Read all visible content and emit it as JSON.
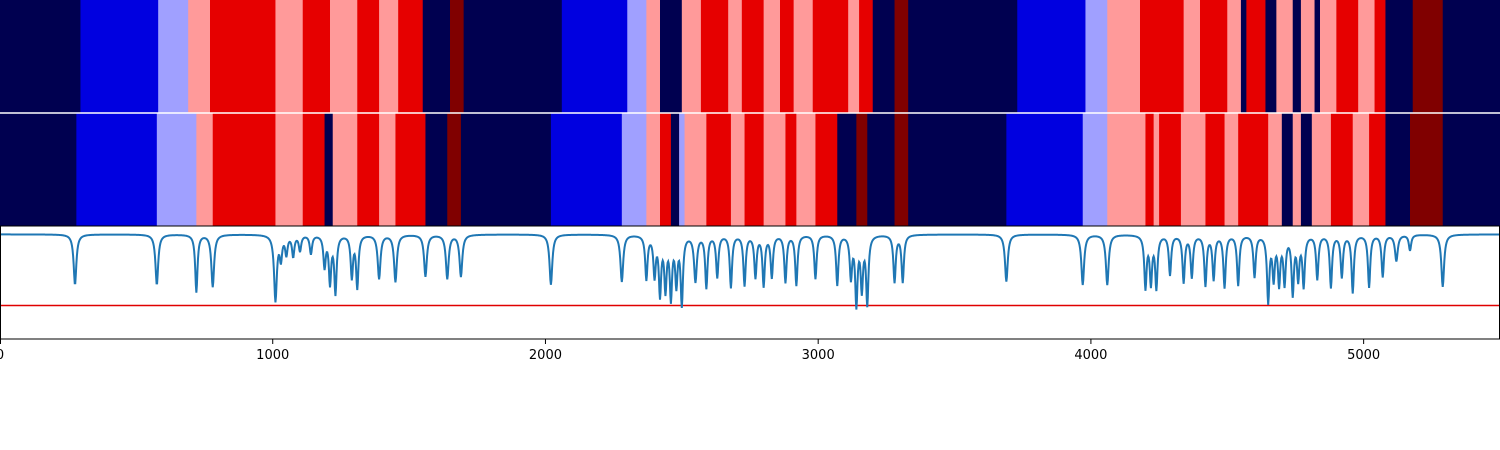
{
  "chart_data": [
    {
      "type": "heatmap",
      "name": "top-segmentation-band",
      "xlim": [
        0,
        5500
      ],
      "palette": {
        "0": "#000050",
        "1": "#0000e0",
        "2": "#a0a0ff",
        "3": "#ff9a9a",
        "4": "#e60000",
        "5": "#800000"
      },
      "segments": [
        [
          0,
          295,
          0
        ],
        [
          295,
          580,
          1
        ],
        [
          580,
          690,
          2
        ],
        [
          690,
          770,
          3
        ],
        [
          770,
          1010,
          4
        ],
        [
          1010,
          1110,
          3
        ],
        [
          1110,
          1210,
          4
        ],
        [
          1210,
          1310,
          3
        ],
        [
          1310,
          1390,
          4
        ],
        [
          1390,
          1460,
          3
        ],
        [
          1460,
          1550,
          4
        ],
        [
          1550,
          1650,
          0
        ],
        [
          1650,
          1700,
          5
        ],
        [
          1700,
          2060,
          0
        ],
        [
          2060,
          2300,
          1
        ],
        [
          2300,
          2370,
          2
        ],
        [
          2370,
          2420,
          3
        ],
        [
          2420,
          2500,
          0
        ],
        [
          2500,
          2570,
          3
        ],
        [
          2570,
          2670,
          4
        ],
        [
          2670,
          2720,
          3
        ],
        [
          2720,
          2800,
          4
        ],
        [
          2800,
          2860,
          3
        ],
        [
          2860,
          2910,
          4
        ],
        [
          2910,
          2980,
          3
        ],
        [
          2980,
          3110,
          4
        ],
        [
          3110,
          3150,
          3
        ],
        [
          3150,
          3200,
          4
        ],
        [
          3200,
          3280,
          0
        ],
        [
          3280,
          3330,
          5
        ],
        [
          3330,
          3730,
          0
        ],
        [
          3730,
          3980,
          1
        ],
        [
          3980,
          4060,
          2
        ],
        [
          4060,
          4180,
          3
        ],
        [
          4180,
          4340,
          4
        ],
        [
          4340,
          4400,
          3
        ],
        [
          4400,
          4500,
          4
        ],
        [
          4500,
          4550,
          3
        ],
        [
          4550,
          4570,
          0
        ],
        [
          4570,
          4640,
          4
        ],
        [
          4640,
          4680,
          0
        ],
        [
          4680,
          4740,
          3
        ],
        [
          4740,
          4770,
          0
        ],
        [
          4770,
          4820,
          3
        ],
        [
          4820,
          4840,
          0
        ],
        [
          4840,
          4900,
          3
        ],
        [
          4900,
          4980,
          4
        ],
        [
          4980,
          5040,
          3
        ],
        [
          5040,
          5080,
          4
        ],
        [
          5080,
          5180,
          0
        ],
        [
          5180,
          5290,
          5
        ],
        [
          5290,
          5500,
          0
        ]
      ]
    },
    {
      "type": "heatmap",
      "name": "bottom-segmentation-band",
      "xlim": [
        0,
        5500
      ],
      "palette": {
        "0": "#000050",
        "1": "#0000e0",
        "2": "#a0a0ff",
        "3": "#ff9a9a",
        "4": "#e60000",
        "5": "#800000"
      },
      "segments": [
        [
          0,
          280,
          0
        ],
        [
          280,
          575,
          1
        ],
        [
          575,
          720,
          2
        ],
        [
          720,
          780,
          3
        ],
        [
          780,
          1010,
          4
        ],
        [
          1010,
          1110,
          3
        ],
        [
          1110,
          1190,
          4
        ],
        [
          1190,
          1220,
          0
        ],
        [
          1220,
          1310,
          3
        ],
        [
          1310,
          1390,
          4
        ],
        [
          1390,
          1450,
          3
        ],
        [
          1450,
          1560,
          4
        ],
        [
          1560,
          1640,
          0
        ],
        [
          1640,
          1690,
          5
        ],
        [
          1690,
          2020,
          0
        ],
        [
          2020,
          2280,
          1
        ],
        [
          2280,
          2370,
          2
        ],
        [
          2370,
          2420,
          3
        ],
        [
          2420,
          2460,
          4
        ],
        [
          2460,
          2490,
          0
        ],
        [
          2490,
          2510,
          2
        ],
        [
          2510,
          2590,
          3
        ],
        [
          2590,
          2680,
          4
        ],
        [
          2680,
          2730,
          3
        ],
        [
          2730,
          2800,
          4
        ],
        [
          2800,
          2880,
          3
        ],
        [
          2880,
          2920,
          4
        ],
        [
          2920,
          2990,
          3
        ],
        [
          2990,
          3070,
          4
        ],
        [
          3070,
          3140,
          0
        ],
        [
          3140,
          3180,
          5
        ],
        [
          3180,
          3280,
          0
        ],
        [
          3280,
          3330,
          5
        ],
        [
          3330,
          3690,
          0
        ],
        [
          3690,
          3970,
          1
        ],
        [
          3970,
          4060,
          2
        ],
        [
          4060,
          4200,
          3
        ],
        [
          4200,
          4230,
          4
        ],
        [
          4230,
          4250,
          3
        ],
        [
          4250,
          4330,
          4
        ],
        [
          4330,
          4420,
          3
        ],
        [
          4420,
          4490,
          4
        ],
        [
          4490,
          4540,
          3
        ],
        [
          4540,
          4650,
          4
        ],
        [
          4650,
          4700,
          3
        ],
        [
          4700,
          4740,
          0
        ],
        [
          4740,
          4770,
          3
        ],
        [
          4770,
          4810,
          0
        ],
        [
          4810,
          4880,
          3
        ],
        [
          4880,
          4960,
          4
        ],
        [
          4960,
          5020,
          3
        ],
        [
          5020,
          5080,
          4
        ],
        [
          5080,
          5170,
          0
        ],
        [
          5170,
          5290,
          5
        ],
        [
          5290,
          5500,
          0
        ]
      ]
    },
    {
      "type": "line",
      "name": "signal-trace",
      "xlim": [
        0,
        5500
      ],
      "ylim": [
        -1.0,
        0.08
      ],
      "color": "#1f77b4",
      "threshold": {
        "y": -0.68,
        "color": "#e00000"
      },
      "baseline": 0.0,
      "dips": [
        [
          275,
          -0.48,
          6
        ],
        [
          575,
          -0.48,
          6
        ],
        [
          720,
          -0.55,
          5
        ],
        [
          780,
          -0.5,
          6
        ],
        [
          1010,
          -0.63,
          6
        ],
        [
          1030,
          -0.22,
          5
        ],
        [
          1050,
          -0.18,
          5
        ],
        [
          1075,
          -0.2,
          5
        ],
        [
          1100,
          -0.15,
          5
        ],
        [
          1140,
          -0.18,
          5
        ],
        [
          1190,
          -0.3,
          5
        ],
        [
          1210,
          -0.45,
          5
        ],
        [
          1230,
          -0.55,
          5
        ],
        [
          1290,
          -0.4,
          5
        ],
        [
          1310,
          -0.5,
          5
        ],
        [
          1390,
          -0.42,
          6
        ],
        [
          1450,
          -0.45,
          6
        ],
        [
          1560,
          -0.4,
          6
        ],
        [
          1640,
          -0.42,
          6
        ],
        [
          1690,
          -0.4,
          6
        ],
        [
          2020,
          -0.48,
          6
        ],
        [
          2280,
          -0.45,
          6
        ],
        [
          2370,
          -0.42,
          5
        ],
        [
          2400,
          -0.38,
          5
        ],
        [
          2420,
          -0.55,
          5
        ],
        [
          2440,
          -0.5,
          5
        ],
        [
          2460,
          -0.58,
          5
        ],
        [
          2480,
          -0.45,
          5
        ],
        [
          2500,
          -0.65,
          5
        ],
        [
          2550,
          -0.44,
          6
        ],
        [
          2590,
          -0.5,
          5
        ],
        [
          2630,
          -0.4,
          5
        ],
        [
          2680,
          -0.5,
          5
        ],
        [
          2730,
          -0.48,
          5
        ],
        [
          2770,
          -0.4,
          5
        ],
        [
          2800,
          -0.48,
          5
        ],
        [
          2830,
          -0.4,
          5
        ],
        [
          2880,
          -0.45,
          5
        ],
        [
          2920,
          -0.48,
          5
        ],
        [
          2990,
          -0.42,
          5
        ],
        [
          3070,
          -0.48,
          5
        ],
        [
          3120,
          -0.4,
          5
        ],
        [
          3140,
          -0.65,
          5
        ],
        [
          3160,
          -0.5,
          5
        ],
        [
          3180,
          -0.65,
          5
        ],
        [
          3280,
          -0.45,
          5
        ],
        [
          3310,
          -0.45,
          5
        ],
        [
          3690,
          -0.45,
          6
        ],
        [
          3970,
          -0.48,
          6
        ],
        [
          4060,
          -0.48,
          6
        ],
        [
          4200,
          -0.5,
          5
        ],
        [
          4220,
          -0.45,
          5
        ],
        [
          4240,
          -0.5,
          5
        ],
        [
          4290,
          -0.38,
          5
        ],
        [
          4340,
          -0.45,
          5
        ],
        [
          4370,
          -0.4,
          5
        ],
        [
          4420,
          -0.48,
          5
        ],
        [
          4450,
          -0.42,
          5
        ],
        [
          4490,
          -0.5,
          5
        ],
        [
          4540,
          -0.48,
          5
        ],
        [
          4600,
          -0.4,
          5
        ],
        [
          4650,
          -0.63,
          5
        ],
        [
          4670,
          -0.4,
          5
        ],
        [
          4690,
          -0.45,
          5
        ],
        [
          4710,
          -0.45,
          5
        ],
        [
          4740,
          -0.55,
          5
        ],
        [
          4760,
          -0.4,
          5
        ],
        [
          4780,
          -0.48,
          5
        ],
        [
          4830,
          -0.42,
          5
        ],
        [
          4880,
          -0.5,
          5
        ],
        [
          4920,
          -0.4,
          5
        ],
        [
          4960,
          -0.55,
          5
        ],
        [
          5020,
          -0.5,
          5
        ],
        [
          5070,
          -0.4,
          5
        ],
        [
          5120,
          -0.25,
          6
        ],
        [
          5170,
          -0.15,
          5
        ],
        [
          5290,
          -0.5,
          6
        ]
      ]
    }
  ],
  "axis": {
    "xticks": [
      0,
      1000,
      2000,
      3000,
      4000,
      5000
    ],
    "xtick_labels": [
      "0",
      "1000",
      "2000",
      "3000",
      "4000",
      "5000"
    ]
  }
}
